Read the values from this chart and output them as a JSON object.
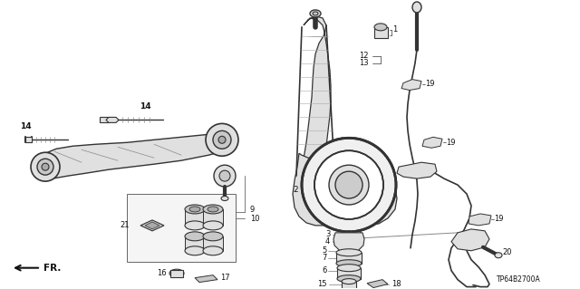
{
  "background_color": "#ffffff",
  "diagram_code": "TP64B2700A",
  "text_color": "#111111",
  "line_color": "#333333",
  "fill_light": "#e0e0e0",
  "fill_mid": "#c8c8c8"
}
